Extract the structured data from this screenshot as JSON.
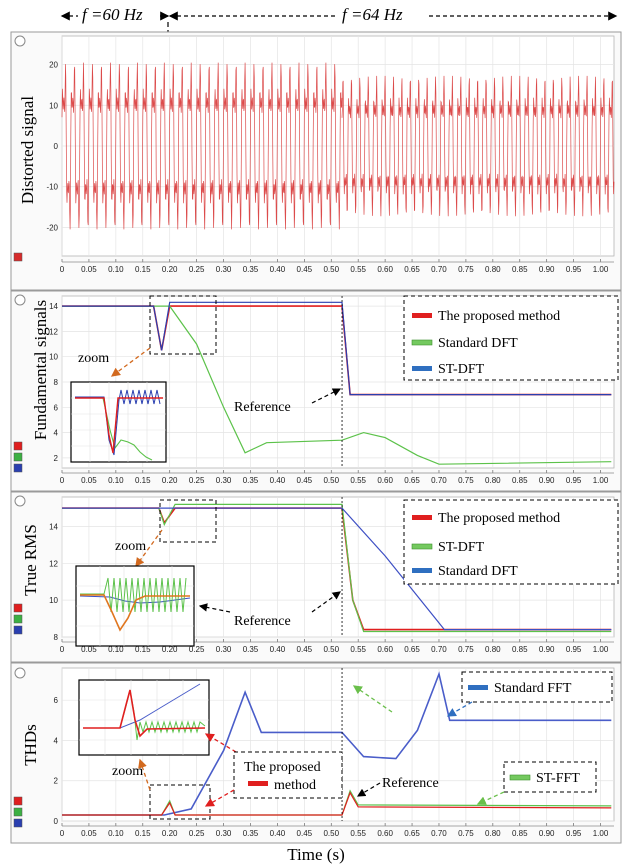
{
  "figure": {
    "freq_left": "f =60 Hz",
    "freq_right": "f =64 Hz",
    "xlabel": "Time (s)"
  },
  "chart_data": [
    {
      "type": "line",
      "ylabel": "Distorted signal",
      "xlim": [
        0,
        1.025
      ],
      "ylim": [
        -27,
        27
      ],
      "yticks": [
        -20,
        -10,
        0,
        10,
        20
      ],
      "xticks": [
        0,
        0.05,
        0.1,
        0.15,
        0.2,
        0.25,
        0.3,
        0.35,
        0.4,
        0.45,
        0.5,
        0.55,
        0.6,
        0.65,
        0.7,
        0.75,
        0.8,
        0.85,
        0.9,
        0.95,
        1.0
      ],
      "grid": true,
      "series": [
        {
          "color": "#d62b2b",
          "segments": [
            {
              "x0": 0,
              "x1": 0.52,
              "freq_hz": 60,
              "envelope": 25
            },
            {
              "x0": 0.52,
              "x1": 1.025,
              "freq_hz": 64,
              "envelope": 21
            }
          ]
        }
      ],
      "annotations": []
    },
    {
      "type": "line",
      "ylabel": "Fundamental  signals",
      "xlim": [
        0,
        1.025
      ],
      "ylim": [
        1.2,
        14.8
      ],
      "yticks": [
        2,
        4,
        6,
        8,
        10,
        12,
        14
      ],
      "grid": true,
      "legend_position": "top-right",
      "legend": [
        "The proposed method",
        "Standard DFT",
        "ST-DFT"
      ],
      "series": [
        {
          "name": "The proposed method",
          "color": "#e01f1f",
          "points": [
            [
              0,
              14
            ],
            [
              0.17,
              14
            ],
            [
              0.185,
              10.5
            ],
            [
              0.2,
              14
            ],
            [
              0.52,
              14
            ],
            [
              0.535,
              7
            ],
            [
              1.02,
              7
            ]
          ]
        },
        {
          "name": "Standard DFT",
          "color": "#5cc24a",
          "points": [
            [
              0,
              14
            ],
            [
              0.17,
              14
            ],
            [
              0.2,
              14
            ],
            [
              0.25,
              11
            ],
            [
              0.3,
              6
            ],
            [
              0.34,
              2.4
            ],
            [
              0.38,
              3.2
            ],
            [
              0.52,
              3.4
            ],
            [
              0.56,
              4
            ],
            [
              0.6,
              3.6
            ],
            [
              0.66,
              2.2
            ],
            [
              0.7,
              1.5
            ],
            [
              1.02,
              1.7
            ]
          ]
        },
        {
          "name": "ST-DFT",
          "color": "#2a3fb0",
          "points": [
            [
              0,
              14
            ],
            [
              0.17,
              14
            ],
            [
              0.185,
              10.5
            ],
            [
              0.2,
              14.3
            ],
            [
              0.52,
              14.3
            ],
            [
              0.535,
              7
            ],
            [
              1.02,
              7
            ]
          ]
        }
      ],
      "annotations": [
        "zoom",
        "Reference"
      ]
    },
    {
      "type": "line",
      "ylabel": "True RMS",
      "xlim": [
        0,
        1.025
      ],
      "ylim": [
        8,
        15.6
      ],
      "yticks": [
        8,
        10,
        12,
        14
      ],
      "grid": true,
      "legend_position": "top-right",
      "legend": [
        "The proposed method",
        "ST-DFT",
        "Standard DFT"
      ],
      "series": [
        {
          "name": "The proposed method",
          "color": "#e01f1f",
          "points": [
            [
              0,
              15
            ],
            [
              0.18,
              15
            ],
            [
              0.19,
              14.2
            ],
            [
              0.21,
              15
            ],
            [
              0.52,
              15
            ],
            [
              0.54,
              10
            ],
            [
              0.56,
              8.4
            ],
            [
              1.02,
              8.4
            ]
          ]
        },
        {
          "name": "ST-DFT",
          "color": "#5cc24a",
          "points": [
            [
              0,
              15
            ],
            [
              0.18,
              15
            ],
            [
              0.19,
              14.1
            ],
            [
              0.21,
              15.2
            ],
            [
              0.52,
              15.2
            ],
            [
              0.54,
              10
            ],
            [
              0.56,
              8.3
            ],
            [
              1.02,
              8.3
            ]
          ]
        },
        {
          "name": "Standard DFT",
          "color": "#3d4fc4",
          "points": [
            [
              0,
              15
            ],
            [
              0.2,
              15
            ],
            [
              0.52,
              15
            ],
            [
              0.6,
              12.4
            ],
            [
              0.71,
              8.4
            ],
            [
              1.02,
              8.4
            ]
          ]
        }
      ],
      "annotations": [
        "zoom",
        "Reference"
      ]
    },
    {
      "type": "line",
      "ylabel": "THDs",
      "xlim": [
        0,
        1.025
      ],
      "ylim": [
        0,
        7.6
      ],
      "yticks": [
        0,
        2,
        4,
        6
      ],
      "grid": true,
      "legend": [
        "Standard FFT",
        "ST-FFT"
      ],
      "series": [
        {
          "name": "Standard FFT",
          "color": "#4a5dc9",
          "points": [
            [
              0,
              0.3
            ],
            [
              0.19,
              0.3
            ],
            [
              0.24,
              0.6
            ],
            [
              0.3,
              3.5
            ],
            [
              0.34,
              6.4
            ],
            [
              0.37,
              4.4
            ],
            [
              0.52,
              4.4
            ],
            [
              0.56,
              3.2
            ],
            [
              0.62,
              3.1
            ],
            [
              0.66,
              4.5
            ],
            [
              0.7,
              7.3
            ],
            [
              0.72,
              5
            ],
            [
              1.02,
              5
            ]
          ]
        },
        {
          "name": "ST-FFT",
          "color": "#5cc24a",
          "points": [
            [
              0,
              0.3
            ],
            [
              0.185,
              0.3
            ],
            [
              0.2,
              1.0
            ],
            [
              0.21,
              0.3
            ],
            [
              0.52,
              0.3
            ],
            [
              0.535,
              1.5
            ],
            [
              0.55,
              0.8
            ],
            [
              1.02,
              0.75
            ]
          ]
        },
        {
          "name": "The proposed method",
          "color": "#e01f1f",
          "points": [
            [
              0,
              0.3
            ],
            [
              0.185,
              0.3
            ],
            [
              0.2,
              0.9
            ],
            [
              0.21,
              0.3
            ],
            [
              0.52,
              0.3
            ],
            [
              0.535,
              1.4
            ],
            [
              0.55,
              0.7
            ],
            [
              1.02,
              0.65
            ]
          ]
        }
      ],
      "annotations": [
        "zoom",
        "Reference",
        "The proposed",
        "method"
      ]
    }
  ]
}
